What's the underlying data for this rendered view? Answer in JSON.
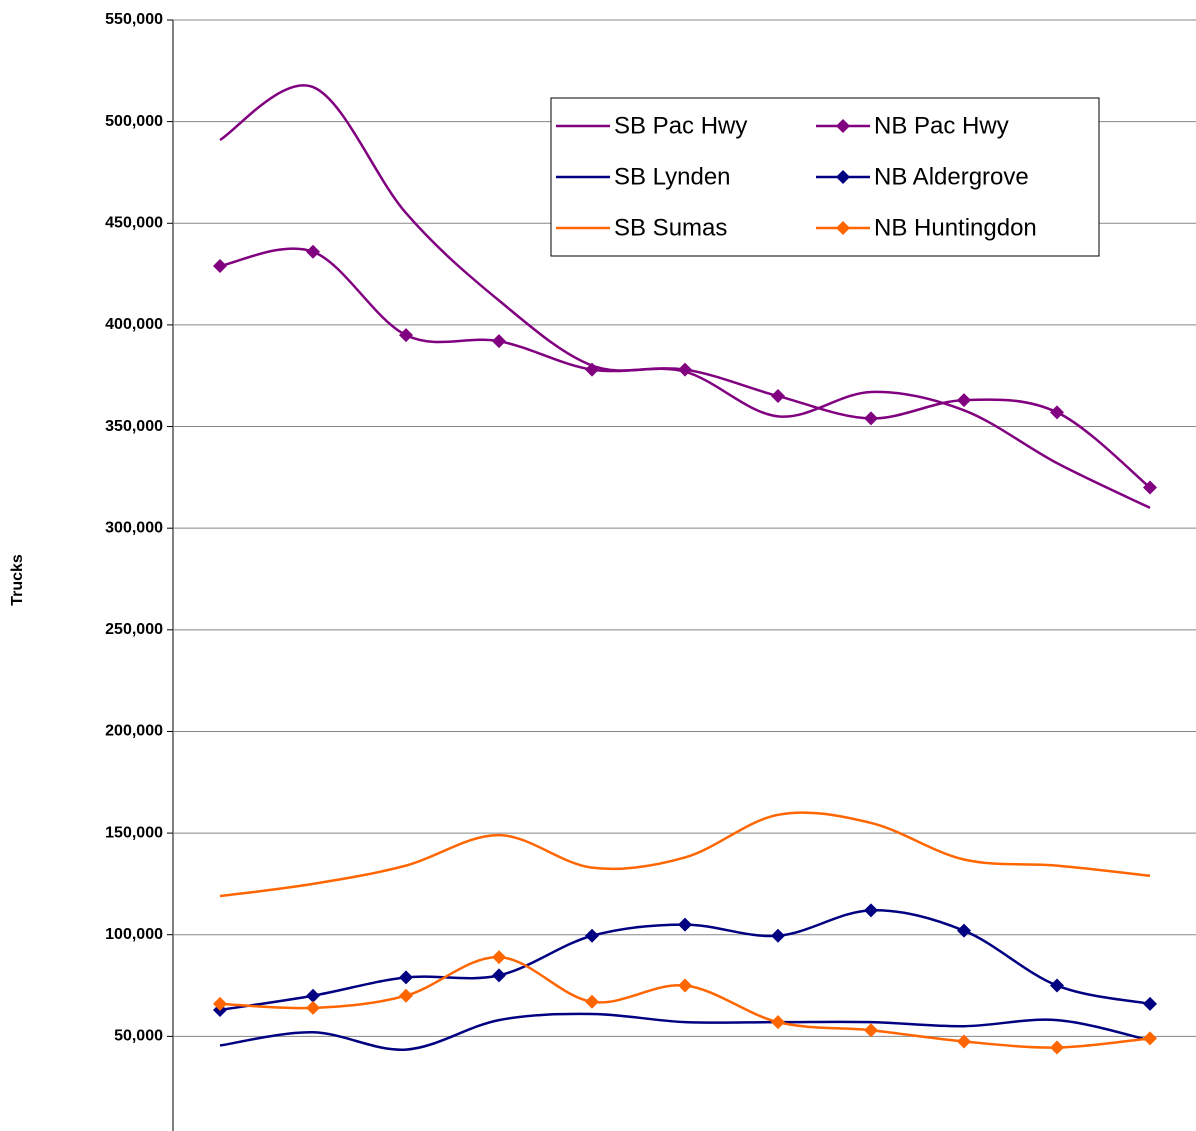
{
  "chart_data": {
    "type": "line",
    "y_label": "Trucks",
    "categories": [
      null,
      null,
      null,
      null,
      null,
      null,
      null,
      null,
      null,
      null,
      null
    ],
    "ylim": [
      0,
      550000
    ],
    "yticks": [
      0,
      {
        "value": 50000,
        "label": "50,000"
      },
      {
        "value": 100000,
        "label": "100,000"
      },
      {
        "value": 150000,
        "label": "150,000"
      },
      {
        "value": 200000,
        "label": "200,000"
      },
      {
        "value": 250000,
        "label": "250,000"
      },
      {
        "value": 300000,
        "label": "300,000"
      },
      {
        "value": 350000,
        "label": "350,000"
      },
      {
        "value": 400000,
        "label": "400,000"
      },
      {
        "value": 450000,
        "label": "450,000"
      },
      {
        "value": 500000,
        "label": "500,000"
      },
      {
        "value": 550000,
        "label": "550,000"
      }
    ],
    "grid": true,
    "legend": "top-right",
    "series": [
      {
        "name": "SB Pac Hwy",
        "color": "#800080",
        "marker": "none",
        "values": [
          491000,
          517000,
          455000,
          412000,
          380000,
          377000,
          355000,
          367000,
          358000,
          332000,
          310000
        ]
      },
      {
        "name": "NB Pac Hwy",
        "color": "#800080",
        "marker": "diamond",
        "values": [
          429000,
          436000,
          395000,
          392000,
          378000,
          378000,
          365000,
          354000,
          363000,
          357000,
          320000
        ]
      },
      {
        "name": "SB Lynden",
        "color": "#000080",
        "marker": "none",
        "values": [
          45500,
          52000,
          43500,
          58000,
          61000,
          57000,
          57000,
          57000,
          55000,
          58000,
          48000
        ]
      },
      {
        "name": "NB Aldergrove",
        "color": "#000080",
        "marker": "diamond",
        "values": [
          63000,
          70000,
          79000,
          80000,
          99500,
          105000,
          99500,
          112000,
          102000,
          75000,
          66000
        ]
      },
      {
        "name": "SB Sumas",
        "color": "#ff6600",
        "marker": "none",
        "values": [
          119000,
          125000,
          134000,
          149000,
          133000,
          138000,
          159000,
          155000,
          137000,
          134000,
          129000
        ]
      },
      {
        "name": "NB Huntingdon",
        "color": "#ff6600",
        "marker": "diamond",
        "values": [
          66000,
          64000,
          70000,
          89000,
          67000,
          75000,
          57000,
          53000,
          47500,
          44500,
          49000
        ]
      }
    ]
  }
}
